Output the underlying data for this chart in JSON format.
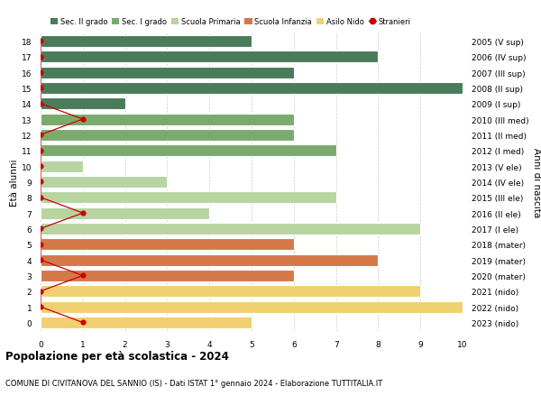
{
  "ages": [
    18,
    17,
    16,
    15,
    14,
    13,
    12,
    11,
    10,
    9,
    8,
    7,
    6,
    5,
    4,
    3,
    2,
    1,
    0
  ],
  "years": [
    "2005 (V sup)",
    "2006 (IV sup)",
    "2007 (III sup)",
    "2008 (II sup)",
    "2009 (I sup)",
    "2010 (III med)",
    "2011 (II med)",
    "2012 (I med)",
    "2013 (V ele)",
    "2014 (IV ele)",
    "2015 (III ele)",
    "2016 (II ele)",
    "2017 (I ele)",
    "2018 (mater)",
    "2019 (mater)",
    "2020 (mater)",
    "2021 (nido)",
    "2022 (nido)",
    "2023 (nido)"
  ],
  "values": [
    5,
    8,
    6,
    10,
    2,
    6,
    6,
    7,
    1,
    3,
    7,
    4,
    9,
    6,
    8,
    6,
    9,
    10,
    5
  ],
  "stranieri": [
    0,
    0,
    0,
    0,
    0,
    1,
    0,
    0,
    0,
    0,
    0,
    1,
    0,
    0,
    0,
    1,
    0,
    0,
    1
  ],
  "bar_colors": [
    "#4a7c59",
    "#4a7c59",
    "#4a7c59",
    "#4a7c59",
    "#4a7c59",
    "#7aab6d",
    "#7aab6d",
    "#7aab6d",
    "#b8d4a0",
    "#b8d4a0",
    "#b8d4a0",
    "#b8d4a0",
    "#b8d4a0",
    "#d4784a",
    "#d4784a",
    "#d4784a",
    "#f0d070",
    "#f0d070",
    "#f0d070"
  ],
  "legend_labels": [
    "Sec. II grado",
    "Sec. I grado",
    "Scuola Primaria",
    "Scuola Infanzia",
    "Asilo Nido",
    "Stranieri"
  ],
  "legend_colors_list": [
    "#4a7c59",
    "#7aab6d",
    "#b8d4a0",
    "#d4784a",
    "#f0d070",
    "#cc0000"
  ],
  "title": "Popolazione per età scolastica - 2024",
  "subtitle": "COMUNE DI CIVITANOVA DEL SANNIO (IS) - Dati ISTAT 1° gennaio 2024 - Elaborazione TUTTITALIA.IT",
  "ylabel_left": "Età alunni",
  "ylabel_right": "Anni di nascita",
  "xlim": [
    0,
    10
  ],
  "bar_height": 0.75,
  "grid_color": "#cccccc",
  "background_color": "#ffffff",
  "bar_edge_color": "#ffffff",
  "stranieri_color": "#cc0000"
}
